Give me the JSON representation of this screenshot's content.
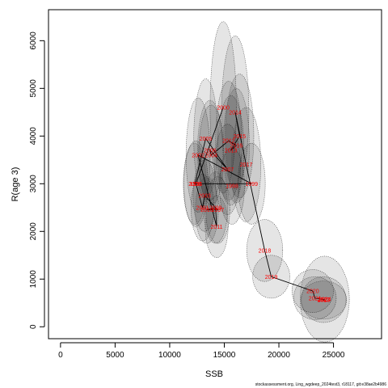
{
  "chart_data": {
    "type": "scatter",
    "title": "",
    "xlabel": "SSB",
    "ylabel": "R(age 3)",
    "xlim": [
      -1100,
      29400
    ],
    "ylim": [
      -250,
      6650
    ],
    "xticks": [
      0,
      5000,
      10000,
      15000,
      20000,
      25000
    ],
    "yticks": [
      0,
      1000,
      2000,
      3000,
      4000,
      5000,
      6000
    ],
    "grid": false,
    "colors": {
      "ellipse_fill": "#000000",
      "ellipse_stroke": "#555555",
      "line": "#000000",
      "label": "#ff0000"
    },
    "points": [
      {
        "year": "1996",
        "x": 12400,
        "y": 3000,
        "sx": 1100,
        "sy": 900
      },
      {
        "year": "1997",
        "x": 14400,
        "y": 2450,
        "sx": 1100,
        "sy": 700
      },
      {
        "year": "1998",
        "x": 15700,
        "y": 2950,
        "sx": 1150,
        "sy": 800
      },
      {
        "year": "1999",
        "x": 17500,
        "y": 3000,
        "sx": 1250,
        "sy": 850
      },
      {
        "year": "2000",
        "x": 14900,
        "y": 4600,
        "sx": 1200,
        "sy": 1800
      },
      {
        "year": "2001",
        "x": 13000,
        "y": 2500,
        "sx": 1050,
        "sy": 700
      },
      {
        "year": "2002",
        "x": 12600,
        "y": 3600,
        "sx": 1100,
        "sy": 1200
      },
      {
        "year": "2003",
        "x": 13200,
        "y": 2750,
        "sx": 1050,
        "sy": 750
      },
      {
        "year": "2004",
        "x": 13800,
        "y": 3600,
        "sx": 1150,
        "sy": 1050
      },
      {
        "year": "2005",
        "x": 13300,
        "y": 3950,
        "sx": 1100,
        "sy": 1250
      },
      {
        "year": "2006",
        "x": 13700,
        "y": 3700,
        "sx": 1150,
        "sy": 1050
      },
      {
        "year": "2007",
        "x": 15300,
        "y": 3300,
        "sx": 1200,
        "sy": 950
      },
      {
        "year": "2008",
        "x": 12300,
        "y": 3000,
        "sx": 1050,
        "sy": 850
      },
      {
        "year": "2009",
        "x": 14200,
        "y": 2500,
        "sx": 1100,
        "sy": 750
      },
      {
        "year": "2010",
        "x": 13400,
        "y": 2450,
        "sx": 1050,
        "sy": 700
      },
      {
        "year": "2011",
        "x": 14300,
        "y": 2100,
        "sx": 1050,
        "sy": 650
      },
      {
        "year": "2012",
        "x": 15400,
        "y": 3900,
        "sx": 1200,
        "sy": 1250
      },
      {
        "year": "2013",
        "x": 15600,
        "y": 3700,
        "sx": 1200,
        "sy": 1150
      },
      {
        "year": "2014",
        "x": 16000,
        "y": 4500,
        "sx": 1250,
        "sy": 1600
      },
      {
        "year": "2015",
        "x": 16400,
        "y": 4000,
        "sx": 1300,
        "sy": 1300
      },
      {
        "year": "2016",
        "x": 16100,
        "y": 3800,
        "sx": 1200,
        "sy": 1200
      },
      {
        "year": "2017",
        "x": 17000,
        "y": 3400,
        "sx": 1350,
        "sy": 1200
      },
      {
        "year": "2018",
        "x": 18700,
        "y": 1600,
        "sx": 1650,
        "sy": 650
      },
      {
        "year": "2019",
        "x": 19300,
        "y": 1050,
        "sx": 1700,
        "sy": 450
      },
      {
        "year": "2020",
        "x": 23100,
        "y": 750,
        "sx": 1900,
        "sy": 450
      },
      {
        "year": "2021",
        "x": 23300,
        "y": 600,
        "sx": 1950,
        "sy": 450
      },
      {
        "year": "2022",
        "x": 24100,
        "y": 570,
        "sx": 2050,
        "sy": 480
      },
      {
        "year": "2023",
        "x": 24100,
        "y": 560,
        "sx": 2100,
        "sy": 400
      },
      {
        "year": "2024",
        "x": 24200,
        "y": 580,
        "sx": 2250,
        "sy": 900
      }
    ],
    "path_order": [
      "2000",
      "1996",
      "2001",
      "2003",
      "1997",
      "2010",
      "2009",
      "2011",
      "2002",
      "1999",
      "2008",
      "2005",
      "2007",
      "2006",
      "2004",
      "2012",
      "2016",
      "2013",
      "2015",
      "2014",
      "2017",
      "2018",
      "2019",
      "2020",
      "2021",
      "2022",
      "2023",
      "2024"
    ]
  },
  "footnote": "stockassessment.org, Ling_wgdeep_2024test3, r18117, git:e38ae2b4986"
}
